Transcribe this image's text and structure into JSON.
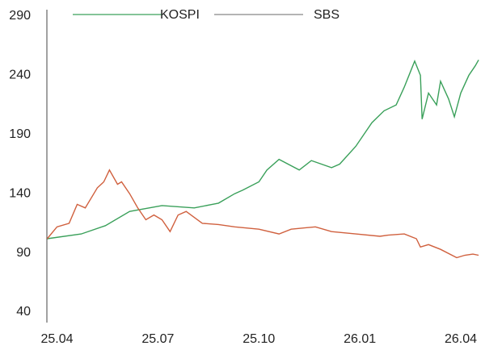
{
  "chart_data": {
    "type": "line",
    "xlim": [
      -0.3,
      12.6
    ],
    "xticks": [
      {
        "value": 0,
        "label": "25.04"
      },
      {
        "value": 3,
        "label": "25.07"
      },
      {
        "value": 6,
        "label": "25.10"
      },
      {
        "value": 9,
        "label": "26.01"
      },
      {
        "value": 12,
        "label": "26.04"
      }
    ],
    "ylim": [
      40,
      290
    ],
    "yticks": [
      40,
      90,
      140,
      190,
      240,
      290
    ],
    "legend": "top",
    "series": [
      {
        "name": "KOSPI",
        "color": "#3aa05a",
        "legend_color": "#3aa05a",
        "x": [
          -0.29,
          0.72,
          1.44,
          2.16,
          3.12,
          4.08,
          4.8,
          5.28,
          5.52,
          6.0,
          6.24,
          6.6,
          7.2,
          7.56,
          8.16,
          8.4,
          8.88,
          9.36,
          9.72,
          10.08,
          10.32,
          10.63,
          10.8,
          10.85,
          11.04,
          11.28,
          11.4,
          11.64,
          11.81,
          12.0,
          12.24,
          12.43,
          12.53
        ],
        "values": [
          102,
          106,
          113,
          125,
          130,
          128,
          132,
          140,
          143,
          150,
          160,
          169,
          160,
          168,
          162,
          165,
          180,
          200,
          210,
          215,
          230,
          252,
          240,
          203,
          225,
          215,
          235,
          220,
          205,
          225,
          240,
          248,
          253
        ]
      },
      {
        "name": "SBS",
        "color": "#d0603e",
        "legend_color": "#888888",
        "x": [
          -0.29,
          0,
          0.36,
          0.6,
          0.84,
          1.2,
          1.39,
          1.56,
          1.8,
          1.92,
          2.16,
          2.4,
          2.64,
          2.88,
          3.12,
          3.36,
          3.6,
          3.84,
          4.32,
          4.8,
          5.28,
          6.0,
          6.6,
          6.96,
          7.68,
          8.16,
          8.88,
          9.6,
          9.84,
          10.32,
          10.68,
          10.8,
          11.04,
          11.4,
          11.88,
          12.12,
          12.36,
          12.53
        ],
        "values": [
          102,
          112,
          115,
          131,
          128,
          145,
          150,
          160,
          148,
          150,
          140,
          128,
          118,
          122,
          118,
          108,
          122,
          125,
          115,
          114,
          112,
          110,
          106,
          110,
          112,
          108,
          106,
          104,
          105,
          106,
          102,
          95,
          97,
          93,
          86,
          88,
          89,
          88
        ]
      }
    ]
  }
}
